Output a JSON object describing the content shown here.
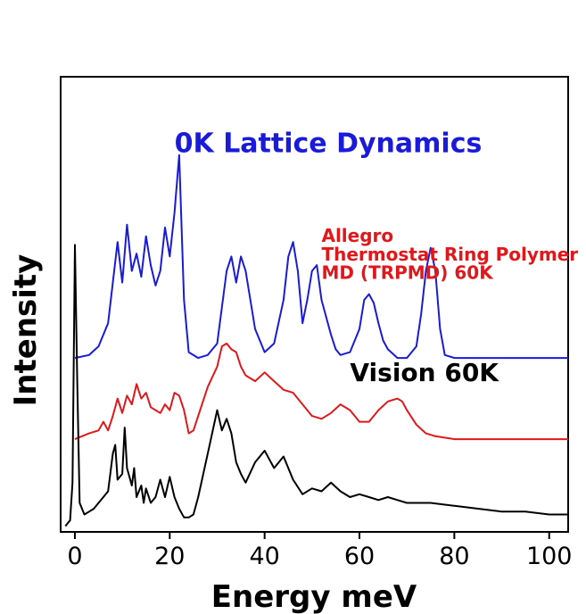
{
  "chart_data": {
    "type": "line",
    "xlabel": "Energy meV",
    "ylabel": "Intensity",
    "xlim": [
      -3,
      104
    ],
    "xticks": [
      0,
      20,
      40,
      60,
      80,
      100
    ],
    "y_ticks_shown": false,
    "grid": false,
    "series": [
      {
        "name": "0K Lattice Dynamics",
        "color": "#1a1adb",
        "offset": 0.58,
        "x": [
          0,
          3,
          5,
          7,
          8,
          9,
          10,
          11,
          12,
          13,
          14,
          15,
          16,
          17,
          18,
          19,
          20,
          21,
          22,
          23,
          24,
          26,
          28,
          30,
          32,
          33,
          34,
          35,
          36,
          37,
          38,
          40,
          42,
          44,
          45,
          46,
          47,
          48,
          49,
          50,
          51,
          52,
          53,
          54,
          55,
          56,
          58,
          60,
          61,
          62,
          63,
          64,
          65,
          66,
          68,
          70,
          72,
          73,
          74,
          75,
          76,
          77,
          78,
          80,
          85,
          90,
          95,
          100,
          104
        ],
        "y": [
          0.0,
          0.01,
          0.04,
          0.12,
          0.26,
          0.4,
          0.26,
          0.46,
          0.3,
          0.36,
          0.28,
          0.42,
          0.32,
          0.25,
          0.3,
          0.45,
          0.35,
          0.5,
          0.7,
          0.2,
          0.02,
          0.0,
          0.01,
          0.05,
          0.3,
          0.35,
          0.26,
          0.35,
          0.3,
          0.2,
          0.1,
          0.02,
          0.05,
          0.2,
          0.35,
          0.4,
          0.3,
          0.12,
          0.2,
          0.3,
          0.32,
          0.2,
          0.14,
          0.08,
          0.03,
          0.01,
          0.02,
          0.1,
          0.2,
          0.22,
          0.19,
          0.12,
          0.06,
          0.03,
          0.0,
          0.0,
          0.04,
          0.15,
          0.3,
          0.38,
          0.3,
          0.1,
          0.01,
          0.0,
          0.0,
          0.0,
          0.0,
          0.0,
          0.0
        ]
      },
      {
        "name": "Allegro Thermostat Ring Polymer MD (TRPMD) 60K",
        "color": "#e0181b",
        "offset": 0.3,
        "x": [
          0,
          3,
          5,
          6,
          7,
          8,
          9,
          10,
          11,
          12,
          13,
          14,
          15,
          16,
          17,
          18,
          19,
          20,
          21,
          22,
          23,
          24,
          25,
          26,
          28,
          30,
          31,
          32,
          33,
          34,
          35,
          36,
          38,
          40,
          42,
          44,
          46,
          48,
          50,
          52,
          54,
          56,
          58,
          60,
          62,
          64,
          66,
          68,
          69,
          70,
          72,
          74,
          76,
          80,
          85,
          90,
          95,
          100,
          104
        ],
        "y": [
          0.0,
          0.02,
          0.03,
          0.06,
          0.03,
          0.08,
          0.14,
          0.09,
          0.15,
          0.12,
          0.19,
          0.14,
          0.16,
          0.11,
          0.1,
          0.09,
          0.12,
          0.1,
          0.16,
          0.15,
          0.1,
          0.02,
          0.03,
          0.08,
          0.18,
          0.25,
          0.32,
          0.33,
          0.31,
          0.3,
          0.25,
          0.22,
          0.2,
          0.23,
          0.2,
          0.17,
          0.16,
          0.12,
          0.08,
          0.07,
          0.09,
          0.12,
          0.1,
          0.06,
          0.06,
          0.1,
          0.13,
          0.14,
          0.13,
          0.1,
          0.05,
          0.02,
          0.01,
          0.0,
          0.0,
          0.0,
          0.0,
          0.0,
          0.0
        ]
      },
      {
        "name": "Vision 60K",
        "color": "#000000",
        "offset": 0.0,
        "x": [
          -2,
          -1,
          -0.5,
          0,
          0.5,
          1,
          2,
          3,
          4,
          5,
          6,
          7,
          8,
          8.5,
          9,
          10,
          10.5,
          11,
          12,
          12.5,
          13,
          14,
          14.5,
          15,
          16,
          17,
          18,
          19,
          20,
          21,
          22,
          23,
          24,
          25,
          26,
          28,
          30,
          31,
          32,
          33,
          34,
          35,
          36,
          38,
          40,
          42,
          44,
          46,
          48,
          50,
          52,
          54,
          56,
          58,
          60,
          62,
          64,
          66,
          68,
          70,
          75,
          80,
          85,
          90,
          95,
          100,
          104
        ],
        "y": [
          0.0,
          0.02,
          0.15,
          0.97,
          0.5,
          0.08,
          0.04,
          0.05,
          0.06,
          0.08,
          0.1,
          0.12,
          0.25,
          0.28,
          0.16,
          0.18,
          0.34,
          0.2,
          0.14,
          0.2,
          0.1,
          0.14,
          0.08,
          0.13,
          0.08,
          0.1,
          0.16,
          0.1,
          0.17,
          0.1,
          0.06,
          0.03,
          0.03,
          0.04,
          0.1,
          0.25,
          0.4,
          0.33,
          0.37,
          0.32,
          0.22,
          0.18,
          0.15,
          0.22,
          0.26,
          0.2,
          0.24,
          0.16,
          0.11,
          0.13,
          0.12,
          0.15,
          0.12,
          0.1,
          0.11,
          0.1,
          0.09,
          0.1,
          0.09,
          0.08,
          0.08,
          0.07,
          0.06,
          0.05,
          0.05,
          0.04,
          0.04
        ]
      }
    ],
    "annotations": [
      {
        "id": "label-0k",
        "lines": [
          "0K Lattice Dynamics"
        ],
        "color": "#1a1adb",
        "x": 21,
        "y": 1.29,
        "size": 30
      },
      {
        "id": "label-allegro",
        "lines": [
          "Allegro",
          "Thermostat Ring Polymer",
          "MD (TRPMD) 60K"
        ],
        "color": "#e0181b",
        "x": 52,
        "y": 0.98,
        "size": 20,
        "line_step": 0.064
      },
      {
        "id": "label-vision",
        "lines": [
          "Vision 60K"
        ],
        "color": "#000000",
        "x": 58,
        "y": 0.5,
        "size": 28
      }
    ]
  }
}
